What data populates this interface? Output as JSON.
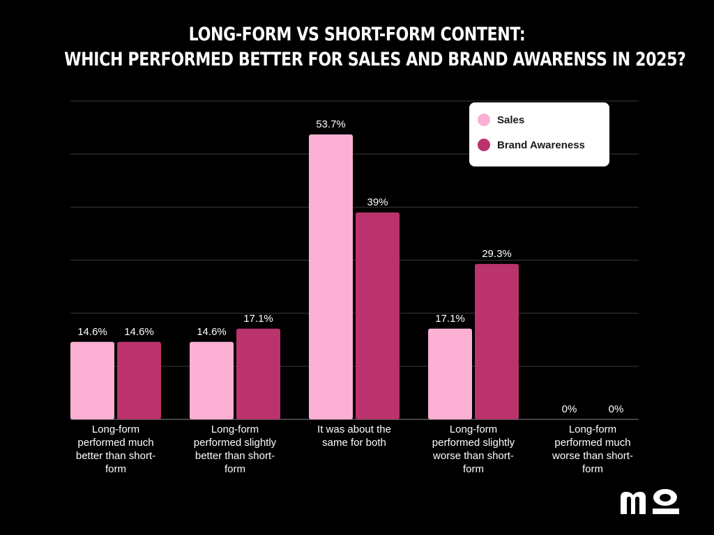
{
  "chart_data": {
    "type": "bar",
    "title_lines": [
      "LONG-FORM VS SHORT-FORM CONTENT:",
      "WHICH PERFORMED BETTER FOR SALES AND BRAND AWARENSS IN 2025?"
    ],
    "categories": [
      [
        "Long-form",
        "performed much",
        "better than short-",
        "form"
      ],
      [
        "Long-form",
        "performed slightly",
        "better than short-",
        "form"
      ],
      [
        "It was about the",
        "same for both"
      ],
      [
        "Long-form",
        "performed slightly",
        "worse than short-",
        "form"
      ],
      [
        "Long-form",
        "performed much",
        "worse than short-",
        "form"
      ]
    ],
    "series": [
      {
        "name": "Sales",
        "color": "#fbb0d4",
        "values": [
          14.6,
          14.6,
          53.7,
          17.1,
          0
        ],
        "labels": [
          "14.6%",
          "14.6%",
          "53.7%",
          "17.1%",
          "0%"
        ]
      },
      {
        "name": "Brand Awareness",
        "color": "#ba336c",
        "values": [
          14.6,
          17.1,
          39,
          29.3,
          0
        ],
        "labels": [
          "14.6%",
          "17.1%",
          "39%",
          "29.3%",
          "0%"
        ]
      }
    ],
    "ylim": [
      0,
      60
    ],
    "grid": true,
    "legend_position": "top-right"
  },
  "colors": {
    "background": "#000000",
    "gridline": "#3a3a3a",
    "text": "#ffffff"
  },
  "logo": {
    "text": "mo"
  }
}
